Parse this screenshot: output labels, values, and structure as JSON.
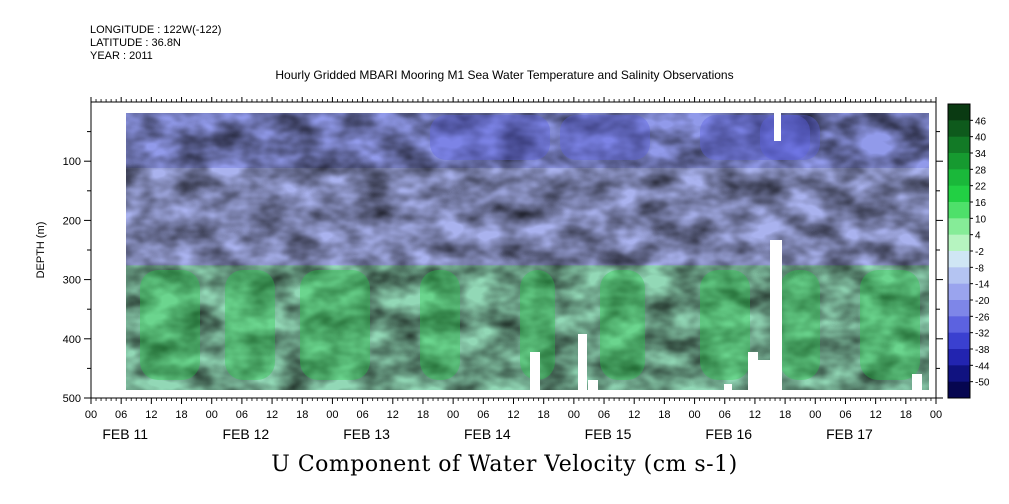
{
  "header": {
    "longitude": "LONGITUDE : 122W(-122)",
    "latitude": "LATITUDE : 36.8N",
    "year": "YEAR : 2011"
  },
  "title": "Hourly Gridded MBARI Mooring M1 Sea Water Temperature and Salinity Observations",
  "footer": "U Component of Water Velocity (cm s-1)",
  "chart_data": {
    "type": "heatmap",
    "title": "Hourly Gridded MBARI Mooring M1 Sea Water Temperature and Salinity Observations",
    "xlabel": "",
    "ylabel": "DEPTH (m)",
    "colorbar_label": "U Component of Water Velocity (cm s-1)",
    "y_ticks": [
      100,
      200,
      300,
      400,
      500
    ],
    "y_range": [
      500,
      0
    ],
    "hour_ticks": [
      "00",
      "06",
      "12",
      "18",
      "00",
      "06",
      "12",
      "18",
      "00",
      "06",
      "12",
      "18",
      "00",
      "06",
      "12",
      "18",
      "00",
      "06",
      "12",
      "18",
      "00",
      "06",
      "12",
      "18",
      "00",
      "06",
      "12",
      "18",
      "00"
    ],
    "day_labels": [
      "FEB 11",
      "FEB 12",
      "FEB 13",
      "FEB 14",
      "FEB 15",
      "FEB 16",
      "FEB 17"
    ],
    "colorbar_levels": [
      "46",
      "40",
      "34",
      "28",
      "22",
      "16",
      "10",
      "4",
      "-2",
      "-8",
      "-14",
      "-20",
      "-26",
      "-32",
      "-38",
      "-44",
      "-50"
    ],
    "colorbar_colors": [
      "#0a3a12",
      "#0e5a1c",
      "#127a26",
      "#169a30",
      "#1ab83a",
      "#22d044",
      "#4ee06a",
      "#86ec98",
      "#b6f4c0",
      "#cfe6f4",
      "#b4c4f2",
      "#9aa4ee",
      "#7e86e8",
      "#5c62e0",
      "#3a40d0",
      "#2224b0",
      "#101280",
      "#060650"
    ]
  }
}
